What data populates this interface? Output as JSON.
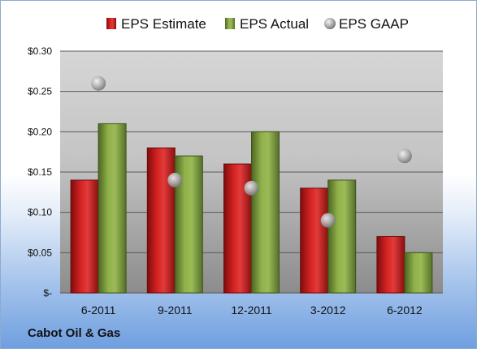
{
  "chart_data": {
    "type": "bar",
    "categories": [
      "6-2011",
      "9-2011",
      "12-2011",
      "3-2012",
      "6-2012"
    ],
    "series": [
      {
        "name": "EPS Estimate",
        "kind": "bar",
        "color": "#cc1f1f",
        "values": [
          0.14,
          0.18,
          0.16,
          0.13,
          0.07
        ]
      },
      {
        "name": "EPS Actual",
        "kind": "bar",
        "color": "#7e9e3b",
        "values": [
          0.21,
          0.17,
          0.2,
          0.14,
          0.05
        ]
      },
      {
        "name": "EPS GAAP",
        "kind": "marker",
        "color": "#a8a8a8",
        "values": [
          0.26,
          0.14,
          0.13,
          0.09,
          0.17
        ]
      }
    ],
    "ylim": [
      0,
      0.3
    ],
    "yticks": [
      0,
      0.05,
      0.1,
      0.15,
      0.2,
      0.25,
      0.3
    ],
    "ytick_labels": [
      "$-",
      "$0.05",
      "$0.10",
      "$0.15",
      "$0.20",
      "$0.25",
      "$0.30"
    ],
    "grid": true,
    "legend_position": "top"
  },
  "company": "Cabot Oil & Gas"
}
